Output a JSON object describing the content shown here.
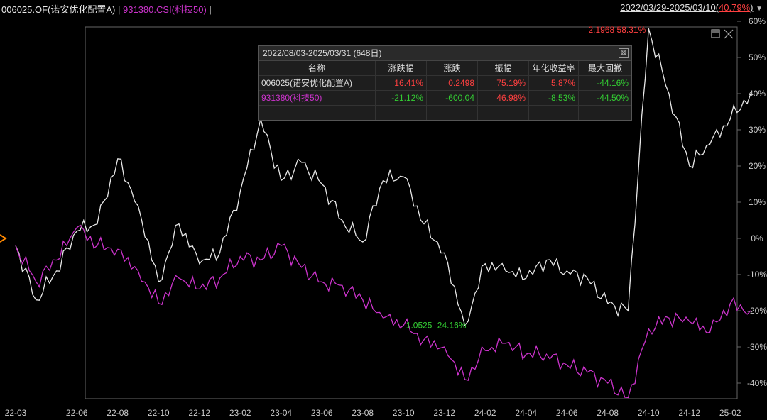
{
  "header": {
    "fund": "006025.OF(诺安优化配置A)",
    "sep": "|",
    "index": "931380.CSI(科技50)",
    "range": "2022/03/29-2025/03/10(",
    "range_pct": "40.79%",
    "range_close": ")",
    "dropdown_glyph": "▼"
  },
  "colors": {
    "fund": "#e8e8e8",
    "index": "#cc33cc",
    "up": "#ff4040",
    "down": "#33cc33",
    "marker": "#ff8800"
  },
  "stats": {
    "title": "2022/08/03-2025/03/31 (648日)",
    "close": "⊠",
    "headers": [
      "名称",
      "涨跌幅",
      "涨跌",
      "振幅",
      "年化收益率",
      "最大回撤"
    ],
    "rows": [
      {
        "name": "006025(诺安优化配置A)",
        "cells": [
          "16.41%",
          "0.2498",
          "75.19%",
          "5.87%",
          "-44.16%"
        ]
      },
      {
        "name": "931380(科技50)",
        "cells": [
          "-21.12%",
          "-600.04",
          "46.98%",
          "-8.53%",
          "-44.50%"
        ]
      }
    ]
  },
  "annotations": {
    "max": "2.1968 58.31%",
    "min": "1.0525 -24.16%"
  },
  "chart_data": {
    "type": "line",
    "ylim": [
      -45,
      60
    ],
    "yticks": [
      "60%",
      "50%",
      "40%",
      "30%",
      "20%",
      "10%",
      "0%",
      "-10%",
      "-20%",
      "-30%",
      "-40%"
    ],
    "xticks": [
      "22-03",
      "22-06",
      "22-08",
      "22-10",
      "22-12",
      "23-02",
      "23-04",
      "23-06",
      "23-08",
      "23-10",
      "23-12",
      "24-02",
      "24-04",
      "24-06",
      "24-08",
      "24-10",
      "24-12",
      "25-02"
    ],
    "series": [
      {
        "name": "006025.OF(诺安优化配置A)",
        "x": [
          "22-03",
          "22-04",
          "22-05",
          "22-06",
          "22-07",
          "22-08",
          "22-09",
          "22-10",
          "22-11",
          "22-12",
          "23-01",
          "23-02",
          "23-03",
          "23-04",
          "23-05",
          "23-06",
          "23-07",
          "23-08",
          "23-09",
          "23-10",
          "23-11",
          "23-12",
          "24-01",
          "24-02",
          "24-03",
          "24-04",
          "24-05",
          "24-06",
          "24-07",
          "24-08",
          "24-09",
          "24-10",
          "24-11",
          "24-12",
          "25-01",
          "25-02",
          "25-03"
        ],
        "y": [
          -2,
          -17,
          -9,
          2,
          4,
          22,
          9,
          -12,
          4,
          -7,
          -4,
          13,
          33,
          16,
          21,
          15,
          5,
          -1,
          16,
          17,
          4,
          -4,
          -24,
          -7,
          -9,
          -11,
          -6,
          -9,
          -11,
          -18,
          -20,
          58,
          40,
          20,
          26,
          33,
          40
        ]
      },
      {
        "name": "931380.CSI(科技50)",
        "x": [
          "22-03",
          "22-04",
          "22-05",
          "22-06",
          "22-07",
          "22-08",
          "22-09",
          "22-10",
          "22-11",
          "22-12",
          "23-01",
          "23-02",
          "23-03",
          "23-04",
          "23-05",
          "23-06",
          "23-07",
          "23-08",
          "23-09",
          "23-10",
          "23-11",
          "23-12",
          "24-01",
          "24-02",
          "24-03",
          "24-04",
          "24-05",
          "24-06",
          "24-07",
          "24-08",
          "24-09",
          "24-10",
          "24-11",
          "24-12",
          "25-01",
          "25-02",
          "25-03"
        ],
        "y": [
          -2,
          -12,
          -6,
          3,
          -2,
          -3,
          -9,
          -18,
          -11,
          -14,
          -11,
          -5,
          -6,
          -2,
          -8,
          -12,
          -13,
          -17,
          -22,
          -24,
          -28,
          -30,
          -39,
          -31,
          -29,
          -32,
          -32,
          -35,
          -37,
          -40,
          -44,
          -25,
          -22,
          -23,
          -26,
          -18,
          -20
        ]
      }
    ]
  }
}
